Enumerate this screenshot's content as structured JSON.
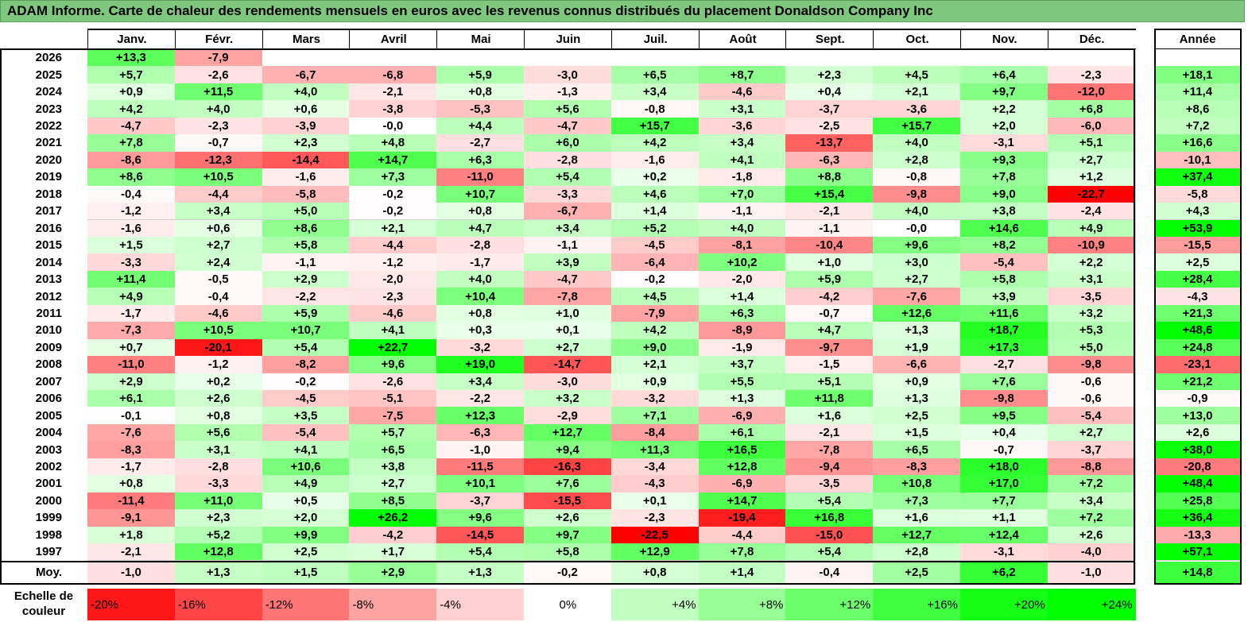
{
  "title": "ADAM Informe. Carte de chaleur des rendements mensuels en euros avec les revenus connus distribués du placement Donaldson Company Inc",
  "chart_data": {
    "type": "heatmap",
    "title": "ADAM Informe. Carte de chaleur des rendements mensuels en euros avec les revenus connus distribués du placement Donaldson Company Inc",
    "columns": [
      "Janv.",
      "Févr.",
      "Mars",
      "Avril",
      "Mai",
      "Juin",
      "Juil.",
      "Août",
      "Sept.",
      "Oct.",
      "Nov.",
      "Déc."
    ],
    "year_header": "Année",
    "rows": [
      {
        "year": "2026",
        "values": [
          "+13,3",
          "-7,9",
          "",
          "",
          "",
          "",
          "",
          "",
          "",
          "",
          "",
          ""
        ],
        "annual": ""
      },
      {
        "year": "2025",
        "values": [
          "+5,7",
          "-2,6",
          "-6,7",
          "-6,8",
          "+5,9",
          "-3,0",
          "+6,5",
          "+8,7",
          "+2,3",
          "+4,5",
          "+6,4",
          "-2,3"
        ],
        "annual": "+18,1"
      },
      {
        "year": "2024",
        "values": [
          "+0,9",
          "+11,5",
          "+4,0",
          "-2,1",
          "+0,8",
          "-1,3",
          "+3,4",
          "-4,6",
          "+0,4",
          "+2,1",
          "+9,7",
          "-12,0"
        ],
        "annual": "+11,4"
      },
      {
        "year": "2023",
        "values": [
          "+4,2",
          "+4,0",
          "+0,6",
          "-3,8",
          "-5,3",
          "+5,6",
          "-0,8",
          "+3,1",
          "-3,7",
          "-3,6",
          "+2,2",
          "+6,8"
        ],
        "annual": "+8,6"
      },
      {
        "year": "2022",
        "values": [
          "-4,7",
          "-2,3",
          "-3,9",
          "-0,0",
          "+4,4",
          "-4,7",
          "+15,7",
          "-3,6",
          "-2,5",
          "+15,7",
          "+2,0",
          "-6,0"
        ],
        "annual": "+7,2"
      },
      {
        "year": "2021",
        "values": [
          "+7,8",
          "-0,7",
          "+2,3",
          "+4,8",
          "-2,7",
          "+6,0",
          "+4,2",
          "+3,4",
          "-13,7",
          "+4,0",
          "-3,1",
          "+5,1"
        ],
        "annual": "+16,6"
      },
      {
        "year": "2020",
        "values": [
          "-8,6",
          "-12,3",
          "-14,4",
          "+14,7",
          "+6,3",
          "-2,8",
          "-1,6",
          "+4,1",
          "-6,3",
          "+2,8",
          "+9,3",
          "+2,7"
        ],
        "annual": "-10,1"
      },
      {
        "year": "2019",
        "values": [
          "+8,6",
          "+10,5",
          "-1,6",
          "+7,3",
          "-11,0",
          "+5,4",
          "+0,2",
          "-1,8",
          "+8,8",
          "-0,8",
          "+7,8",
          "+1,2"
        ],
        "annual": "+37,4"
      },
      {
        "year": "2018",
        "values": [
          "-0,4",
          "-4,4",
          "-5,8",
          "-0,2",
          "+10,7",
          "-3,3",
          "+4,6",
          "+7,0",
          "+15,4",
          "-9,8",
          "+9,0",
          "-22,7"
        ],
        "annual": "-5,8"
      },
      {
        "year": "2017",
        "values": [
          "-1,2",
          "+3,4",
          "+5,0",
          "-0,2",
          "+0,8",
          "-6,7",
          "+1,4",
          "-1,1",
          "-2,1",
          "+4,0",
          "+3,8",
          "-2,4"
        ],
        "annual": "+4,3"
      },
      {
        "year": "2016",
        "values": [
          "-1,6",
          "+0,6",
          "+8,6",
          "+2,1",
          "+4,7",
          "+3,4",
          "+5,2",
          "+4,0",
          "-1,1",
          "-0,0",
          "+14,6",
          "+4,9"
        ],
        "annual": "+53,9"
      },
      {
        "year": "2015",
        "values": [
          "+1,5",
          "+2,7",
          "+5,8",
          "-4,4",
          "-2,8",
          "-1,1",
          "-4,5",
          "-8,1",
          "-10,4",
          "+9,6",
          "+8,2",
          "-10,9"
        ],
        "annual": "-15,5"
      },
      {
        "year": "2014",
        "values": [
          "-3,3",
          "+2,4",
          "-1,1",
          "-1,2",
          "-1,7",
          "+3,9",
          "-6,4",
          "+10,2",
          "+1,0",
          "+3,0",
          "-5,4",
          "+2,2"
        ],
        "annual": "+2,5"
      },
      {
        "year": "2013",
        "values": [
          "+11,4",
          "-0,5",
          "+2,9",
          "-2,0",
          "+4,0",
          "-4,7",
          "-0,2",
          "-2,0",
          "+5,9",
          "+2,7",
          "+5,8",
          "+3,1"
        ],
        "annual": "+28,4"
      },
      {
        "year": "2012",
        "values": [
          "+4,9",
          "-0,4",
          "-2,2",
          "-2,3",
          "+10,4",
          "-7,8",
          "+4,5",
          "+1,4",
          "-4,2",
          "-7,6",
          "+3,9",
          "-3,5"
        ],
        "annual": "-4,3"
      },
      {
        "year": "2011",
        "values": [
          "-1,7",
          "-4,6",
          "+5,9",
          "-4,6",
          "+0,8",
          "+1,0",
          "-7,9",
          "+6,3",
          "-0,7",
          "+12,6",
          "+11,6",
          "+3,2"
        ],
        "annual": "+21,3"
      },
      {
        "year": "2010",
        "values": [
          "-7,3",
          "+10,5",
          "+10,7",
          "+4,1",
          "+0,3",
          "+0,1",
          "+4,2",
          "-8,9",
          "+4,7",
          "+1,3",
          "+18,7",
          "+5,3"
        ],
        "annual": "+48,6"
      },
      {
        "year": "2009",
        "values": [
          "+0,7",
          "-20,1",
          "+5,4",
          "+22,7",
          "-3,2",
          "+2,7",
          "+9,0",
          "-1,9",
          "-9,7",
          "+1,9",
          "+17,3",
          "+5,0"
        ],
        "annual": "+24,8"
      },
      {
        "year": "2008",
        "values": [
          "-11,0",
          "-1,2",
          "-8,2",
          "+9,6",
          "+19,0",
          "-14,7",
          "+2,1",
          "+3,7",
          "-1,5",
          "-6,6",
          "-2,7",
          "-9,8"
        ],
        "annual": "-23,1"
      },
      {
        "year": "2007",
        "values": [
          "+2,9",
          "+0,2",
          "-0,2",
          "-2,6",
          "+3,4",
          "-3,0",
          "+0,9",
          "+5,5",
          "+5,1",
          "+0,9",
          "+7,6",
          "-0,6"
        ],
        "annual": "+21,2"
      },
      {
        "year": "2006",
        "values": [
          "+6,1",
          "+2,6",
          "-4,5",
          "-5,1",
          "-2,2",
          "+3,2",
          "-3,2",
          "+1,3",
          "+11,8",
          "+1,3",
          "-9,8",
          "-0,6"
        ],
        "annual": "-0,9"
      },
      {
        "year": "2005",
        "values": [
          "-0,1",
          "+0,8",
          "+3,5",
          "-7,5",
          "+12,3",
          "-2,9",
          "+7,1",
          "-6,9",
          "+1,6",
          "+2,5",
          "+9,5",
          "-5,4"
        ],
        "annual": "+13,0"
      },
      {
        "year": "2004",
        "values": [
          "-7,6",
          "+5,6",
          "-5,4",
          "+5,7",
          "-6,3",
          "+12,7",
          "-8,4",
          "+6,1",
          "-2,1",
          "+1,5",
          "+0,4",
          "+2,7"
        ],
        "annual": "+2,6"
      },
      {
        "year": "2003",
        "values": [
          "-8,3",
          "+3,1",
          "+4,1",
          "+6,5",
          "-1,0",
          "+9,4",
          "+11,3",
          "+16,5",
          "-7,8",
          "+6,5",
          "-0,7",
          "-3,7"
        ],
        "annual": "+38,0"
      },
      {
        "year": "2002",
        "values": [
          "-1,7",
          "-2,8",
          "+10,6",
          "+3,8",
          "-11,5",
          "-16,3",
          "-3,4",
          "+12,8",
          "-9,4",
          "-8,3",
          "+18,0",
          "-8,8"
        ],
        "annual": "-20,8"
      },
      {
        "year": "2001",
        "values": [
          "+0,8",
          "-3,3",
          "+4,9",
          "+2,7",
          "+10,1",
          "+7,6",
          "-4,3",
          "-6,9",
          "-3,5",
          "+10,8",
          "+17,0",
          "+7,2"
        ],
        "annual": "+48,4"
      },
      {
        "year": "2000",
        "values": [
          "-11,4",
          "+11,0",
          "+0,5",
          "+8,5",
          "-3,7",
          "-15,5",
          "+0,1",
          "+14,7",
          "+5,4",
          "+7,3",
          "+7,7",
          "+3,4"
        ],
        "annual": "+25,8"
      },
      {
        "year": "1999",
        "values": [
          "-9,1",
          "+2,3",
          "+2,0",
          "+26,2",
          "+9,6",
          "+2,6",
          "-2,3",
          "-19,4",
          "+16,8",
          "+1,6",
          "+1,1",
          "+7,2"
        ],
        "annual": "+36,4"
      },
      {
        "year": "1998",
        "values": [
          "+1,8",
          "+5,2",
          "+9,9",
          "-4,2",
          "-14,5",
          "+9,7",
          "-22,5",
          "-4,4",
          "-15,0",
          "+12,7",
          "+12,4",
          "+2,6"
        ],
        "annual": "-13,3"
      },
      {
        "year": "1997",
        "values": [
          "-2,1",
          "+12,8",
          "+2,5",
          "+1,7",
          "+5,4",
          "+5,8",
          "+12,9",
          "+7,8",
          "+5,4",
          "+2,8",
          "-3,1",
          "-4,0"
        ],
        "annual": "+57,1"
      }
    ],
    "average": {
      "label": "Moy.",
      "values": [
        "-1,0",
        "+1,3",
        "+1,5",
        "+2,9",
        "+1,3",
        "-0,2",
        "+0,8",
        "+1,4",
        "-0,4",
        "+2,5",
        "+6,2",
        "-1,0"
      ],
      "annual": "+14,8"
    },
    "legend": {
      "label": "Echelle de couleur",
      "steps": [
        "-20%",
        "-16%",
        "-12%",
        "-8%",
        "-4%",
        "0%",
        "+4%",
        "+8%",
        "+12%",
        "+16%",
        "+20%",
        "+24%"
      ],
      "step_values": [
        -20,
        -16,
        -12,
        -8,
        -4,
        0,
        4,
        8,
        12,
        16,
        20,
        24
      ]
    },
    "colors": {
      "negative": "#ff0000",
      "positive": "#00ff00",
      "neutral": "#ffffff",
      "title_bg": "#7ec87e"
    }
  }
}
